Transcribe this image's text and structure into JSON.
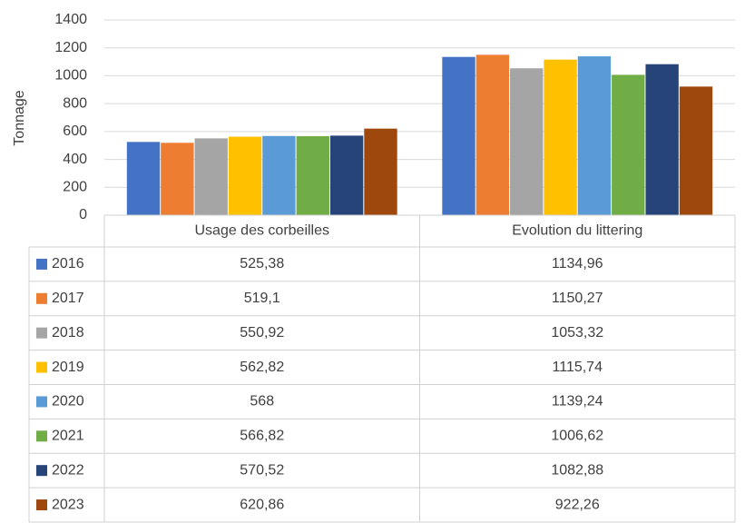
{
  "chart_data": {
    "type": "bar",
    "y_axis_label": "Tonnage",
    "categories": [
      "Usage des corbeilles",
      "Evolution du littering"
    ],
    "series": [
      {
        "name": "2016",
        "color": "#4472c4",
        "values": [
          525.38,
          1134.96
        ],
        "value_labels": [
          "525,38",
          "1134,96"
        ]
      },
      {
        "name": "2017",
        "color": "#ed7d31",
        "values": [
          519.1,
          1150.27
        ],
        "value_labels": [
          "519,1",
          "1150,27"
        ]
      },
      {
        "name": "2018",
        "color": "#a5a5a5",
        "values": [
          550.92,
          1053.32
        ],
        "value_labels": [
          "550,92",
          "1053,32"
        ]
      },
      {
        "name": "2019",
        "color": "#ffc000",
        "values": [
          562.82,
          1115.74
        ],
        "value_labels": [
          "562,82",
          "1115,74"
        ]
      },
      {
        "name": "2020",
        "color": "#5b9bd5",
        "values": [
          568,
          1139.24
        ],
        "value_labels": [
          "568",
          "1139,24"
        ]
      },
      {
        "name": "2021",
        "color": "#70ad47",
        "values": [
          566.82,
          1006.62
        ],
        "value_labels": [
          "566,82",
          "1006,62"
        ]
      },
      {
        "name": "2022",
        "color": "#264478",
        "values": [
          570.52,
          1082.88
        ],
        "value_labels": [
          "570,52",
          "1082,88"
        ]
      },
      {
        "name": "2023",
        "color": "#9e480e",
        "values": [
          620.86,
          922.26
        ],
        "value_labels": [
          "620,86",
          "922,26"
        ]
      }
    ],
    "ylim": [
      0,
      1400
    ],
    "yticks": [
      0,
      200,
      400,
      600,
      800,
      1000,
      1200,
      1400
    ],
    "grid": true
  }
}
